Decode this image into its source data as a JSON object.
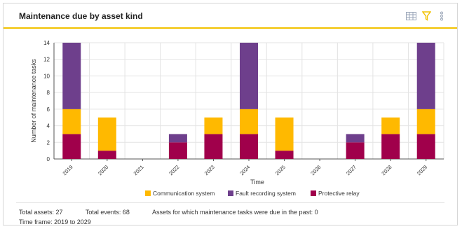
{
  "widget": {
    "title": "Maintenance due by asset kind",
    "icons": [
      "table-view-icon",
      "filter-icon",
      "more-options-icon"
    ]
  },
  "chart_data": {
    "type": "bar",
    "stacked": true,
    "categories": [
      "2019",
      "2020",
      "2021",
      "2022",
      "2023",
      "2024",
      "2025",
      "2026",
      "2027",
      "2028",
      "2029"
    ],
    "series": [
      {
        "name": "Protective relay",
        "color": "#a0004b",
        "values": [
          3,
          1,
          0,
          2,
          3,
          3,
          1,
          0,
          2,
          3,
          3
        ]
      },
      {
        "name": "Communication system",
        "color": "#ffb900",
        "values": [
          3,
          4,
          0,
          0,
          2,
          3,
          4,
          0,
          0,
          2,
          3
        ]
      },
      {
        "name": "Fault recording system",
        "color": "#6e3f8c",
        "values": [
          8,
          0,
          0,
          1,
          0,
          8,
          0,
          0,
          1,
          0,
          8
        ]
      }
    ],
    "legend_order": [
      "Communication system",
      "Fault recording system",
      "Protective relay"
    ],
    "xlabel": "Time",
    "ylabel": "Number of maintenance tasks",
    "ylim": [
      0,
      14
    ],
    "yticks": [
      0,
      2,
      4,
      6,
      8,
      10,
      12,
      14
    ],
    "grid": true,
    "legend_position": "bottom"
  },
  "footer": {
    "total_assets": "Total assets: 27",
    "total_events": "Total events: 68",
    "past_due": "Assets for which maintenance tasks were due in the past: 0",
    "time_frame": "Time frame: 2019 to 2029"
  }
}
